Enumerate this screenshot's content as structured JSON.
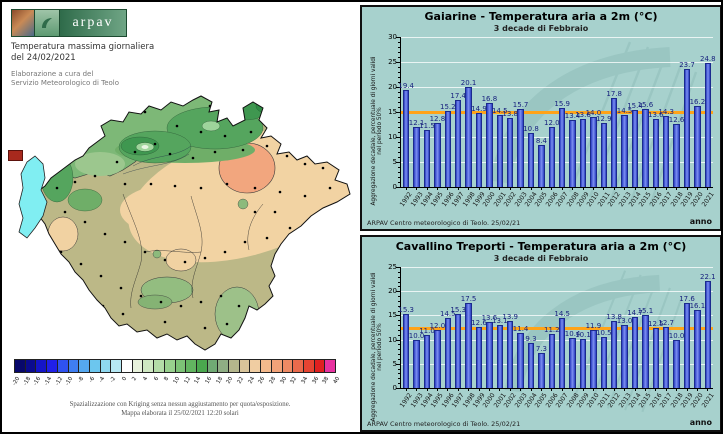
{
  "map_panel": {
    "logo_text": "arpav",
    "title_line1": "Temperatura massima giornaliera",
    "title_line2": "del 24/02/2021",
    "credit_line1": "Elaborazione a cura del",
    "credit_line2": "Servizio Meteorologico di Teolo",
    "caption_line1": "Spazializzazione con Kriging senza nessun aggiustamento per quota/esposizione.",
    "caption_line2": "Mappa elaborata il 25/02/2021 12:20 solari",
    "scale": {
      "labels": [
        "-20",
        "-18",
        "-16",
        "-14",
        "-12",
        "-10",
        "-8",
        "-6",
        "-4",
        "-2",
        "0",
        "2",
        "4",
        "6",
        "8",
        "10",
        "12",
        "14",
        "16",
        "18",
        "20",
        "22",
        "24",
        "26",
        "28",
        "30",
        "32",
        "34",
        "36",
        "38",
        "40"
      ],
      "colors": [
        "#08086b",
        "#0b0b8f",
        "#1515c8",
        "#2020e8",
        "#2f52f0",
        "#3f7ef2",
        "#55a8f0",
        "#6cc6ee",
        "#8fd8f0",
        "#b6e8f4",
        "#ffffff",
        "#e8f2dc",
        "#cfe8c2",
        "#b4dca8",
        "#98d08e",
        "#7cc276",
        "#62b560",
        "#4aa84e",
        "#70aa74",
        "#8fae84",
        "#b4b68c",
        "#d8c49a",
        "#f0cda2",
        "#f4b98c",
        "#f2a278",
        "#ee8a64",
        "#ea6a4c",
        "#e64432",
        "#e02020",
        "#e832a0"
      ]
    }
  },
  "chart_data": [
    {
      "type": "bar",
      "title": "Gaiarine - Temperatura aria a 2m (°C)",
      "subtitle": "3 decade di Febbraio",
      "xlabel": "anno",
      "ylabel": "Aggregazione decadale, percentuale di giorni validi nel periodo 50%",
      "footer": "ARPAV Centro meteorologico di Teolo. 25/02/21",
      "ylim": [
        0,
        30
      ],
      "yticks": [
        0,
        5,
        10,
        15,
        20,
        25,
        30
      ],
      "reference_line": 15.0,
      "reference_color": "#ffa318",
      "bar_color": "#4a63e0",
      "categories": [
        1992,
        1993,
        1994,
        1995,
        1996,
        1997,
        1998,
        1999,
        2000,
        2001,
        2002,
        2003,
        2004,
        2005,
        2006,
        2007,
        2008,
        2009,
        2010,
        2011,
        2012,
        2013,
        2014,
        2015,
        2016,
        2017,
        2018,
        2019,
        2020,
        2021
      ],
      "values": [
        19.4,
        12.1,
        11.5,
        12.8,
        15.2,
        17.4,
        20.1,
        14.9,
        16.8,
        14.5,
        13.8,
        15.7,
        10.8,
        8.4,
        12.0,
        15.9,
        13.4,
        13.6,
        14.0,
        12.9,
        17.8,
        14.5,
        15.4,
        15.6,
        13.6,
        14.3,
        12.6,
        23.7,
        16.2,
        24.8
      ]
    },
    {
      "type": "bar",
      "title": "Cavallino Treporti - Temperatura aria a 2m (°C)",
      "subtitle": "3 decade di Febbraio",
      "xlabel": "anno",
      "ylabel": "Aggregazione decadale, percentuale di giorni validi nel periodo 50%",
      "footer": "ARPAV Centro meteorologico di Teolo. 25/02/21",
      "ylim": [
        0,
        25
      ],
      "yticks": [
        0,
        5,
        10,
        15,
        20,
        25
      ],
      "reference_line": 12.5,
      "reference_color": "#ffa318",
      "bar_color": "#4a63e0",
      "categories": [
        1992,
        1993,
        1994,
        1995,
        1996,
        1997,
        1998,
        1999,
        2000,
        2001,
        2002,
        2003,
        2004,
        2005,
        2006,
        2007,
        2008,
        2009,
        2010,
        2011,
        2012,
        2013,
        2014,
        2015,
        2016,
        2017,
        2018,
        2019,
        2020,
        2021
      ],
      "values": [
        15.3,
        10.0,
        11.0,
        12.0,
        14.5,
        15.3,
        17.5,
        12.6,
        13.6,
        13.1,
        13.9,
        11.4,
        9.3,
        7.3,
        11.2,
        14.5,
        10.4,
        10.1,
        11.9,
        10.5,
        13.8,
        13.0,
        14.7,
        15.1,
        12.5,
        12.7,
        10.0,
        17.6,
        16.1,
        22.1
      ]
    }
  ]
}
